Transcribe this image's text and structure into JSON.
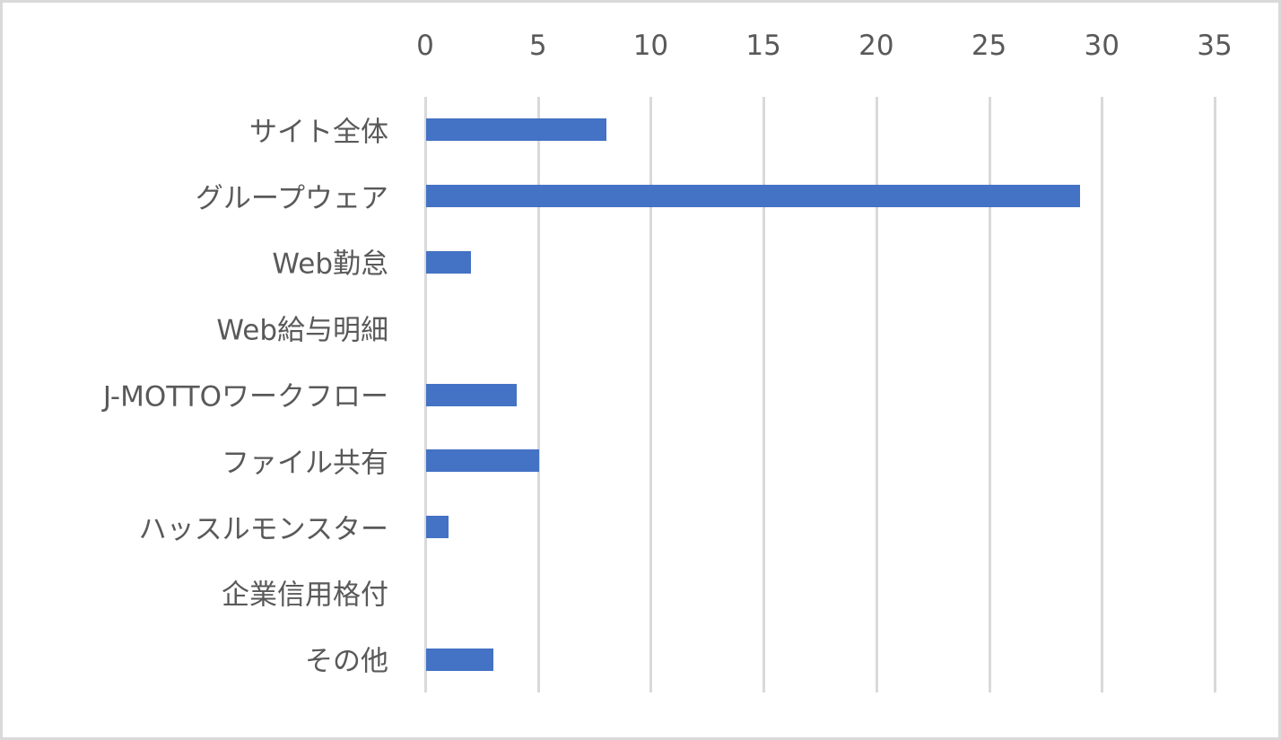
{
  "chart_data": {
    "type": "bar",
    "orientation": "horizontal",
    "title": "",
    "xlabel": "",
    "ylabel": "",
    "xlim": [
      0,
      35
    ],
    "x_ticks": [
      "0",
      "5",
      "10",
      "15",
      "20",
      "25",
      "30",
      "35"
    ],
    "x_axis_position": "top",
    "grid": true,
    "legend": "none",
    "categories": [
      "サイト全体",
      "グループウェア",
      "Web勤怠",
      "Web給与明細",
      "J-MOTTOワークフロー",
      "ファイル共有",
      "ハッスルモンスター",
      "企業信用格付",
      "その他"
    ],
    "values": [
      8,
      29,
      2,
      0,
      4,
      5,
      1,
      0,
      3
    ],
    "bar_color": "#4472c4"
  },
  "colors": {
    "bar": "#4472c4",
    "grid": "#d9d9d9",
    "text": "#595959",
    "border": "#d9d9d9"
  }
}
